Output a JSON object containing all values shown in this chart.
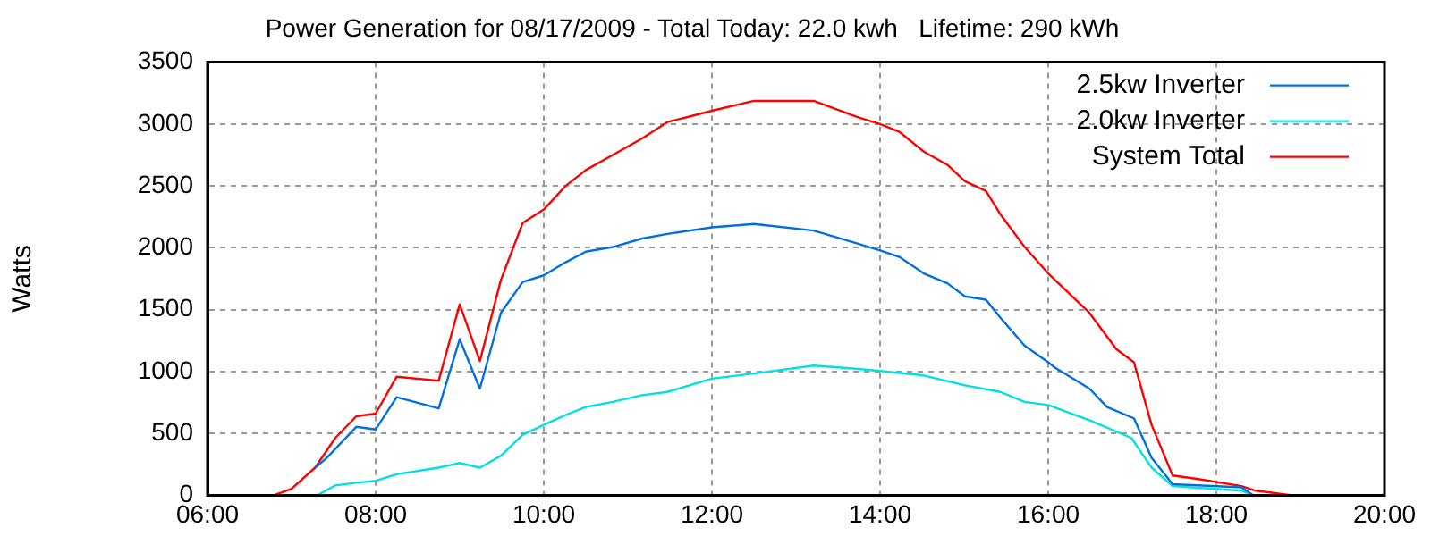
{
  "chart_data": {
    "type": "line",
    "title": "Power Generation for 08/17/2009 - Total Today: 22.0 kwh   Lifetime: 290 kWh",
    "ylabel": "Watts",
    "xlim": [
      6,
      20
    ],
    "xticks": [
      {
        "value": 6,
        "label": "06:00"
      },
      {
        "value": 8,
        "label": "08:00"
      },
      {
        "value": 10,
        "label": "10:00"
      },
      {
        "value": 12,
        "label": "12:00"
      },
      {
        "value": 14,
        "label": "14:00"
      },
      {
        "value": 16,
        "label": "16:00"
      },
      {
        "value": 18,
        "label": "18:00"
      },
      {
        "value": 20,
        "label": "20:00"
      }
    ],
    "ylim": [
      0,
      3500
    ],
    "yticks": [
      0,
      500,
      1000,
      1500,
      2000,
      2500,
      3000,
      3500
    ],
    "grid": true,
    "legend": "top right",
    "marker": "none",
    "line_style": "solid",
    "series": [
      {
        "name": "2.5kw Inverter",
        "color": "#0070e0",
        "x": [
          7.28,
          7.42,
          7.77,
          8.0,
          8.25,
          8.75,
          9.0,
          9.24,
          9.49,
          9.75,
          10.0,
          10.26,
          10.5,
          10.82,
          11.17,
          11.47,
          12.0,
          12.5,
          13.21,
          13.74,
          14.0,
          14.23,
          14.52,
          14.8,
          15.01,
          15.26,
          15.43,
          15.72,
          16.0,
          16.08,
          16.49,
          16.7,
          17.02,
          17.23,
          17.48,
          18.3,
          18.44
        ],
        "values": [
          223,
          303,
          553,
          532,
          793,
          702,
          1261,
          862,
          1474,
          1724,
          1777,
          1883,
          1968,
          2006,
          2075,
          2112,
          2165,
          2192,
          2139,
          2032,
          1979,
          1926,
          1793,
          1713,
          1607,
          1580,
          1436,
          1208,
          1075,
          1032,
          862,
          713,
          622,
          303,
          90,
          64,
          0
        ]
      },
      {
        "name": "2.0kw Inverter",
        "color": "#00e0e0",
        "x": [
          7.31,
          7.52,
          7.77,
          8.0,
          8.25,
          8.75,
          9.0,
          9.24,
          9.49,
          9.75,
          10.0,
          10.26,
          10.5,
          10.82,
          11.17,
          11.47,
          12.0,
          12.5,
          13.21,
          13.74,
          14.0,
          14.52,
          15.01,
          15.43,
          15.72,
          16.0,
          16.49,
          16.99,
          17.23,
          17.48,
          18.3,
          18.44
        ],
        "values": [
          0,
          80,
          101,
          117,
          170,
          223,
          261,
          223,
          319,
          489,
          569,
          649,
          713,
          755,
          809,
          835,
          942,
          984,
          1048,
          1021,
          1005,
          968,
          888,
          835,
          755,
          729,
          606,
          463,
          223,
          74,
          37,
          0
        ]
      },
      {
        "name": "System Total",
        "color": "#ff0000",
        "x": [
          6.79,
          7.0,
          7.28,
          7.52,
          7.77,
          8.0,
          8.25,
          8.75,
          9.0,
          9.24,
          9.49,
          9.75,
          10.0,
          10.26,
          10.5,
          10.82,
          11.17,
          11.47,
          12.0,
          12.5,
          13.21,
          13.74,
          14.0,
          14.23,
          14.52,
          14.8,
          15.01,
          15.26,
          15.43,
          15.72,
          16.0,
          16.49,
          16.81,
          17.02,
          17.23,
          17.48,
          17.77,
          18.3,
          18.47,
          18.9
        ],
        "values": [
          0,
          53,
          223,
          463,
          638,
          660,
          958,
          926,
          1543,
          1085,
          1740,
          2202,
          2309,
          2500,
          2628,
          2750,
          2883,
          3016,
          3107,
          3187,
          3187,
          3054,
          3000,
          2937,
          2777,
          2671,
          2538,
          2458,
          2272,
          2006,
          1793,
          1474,
          1181,
          1075,
          569,
          160,
          133,
          74,
          37,
          0
        ]
      }
    ]
  }
}
